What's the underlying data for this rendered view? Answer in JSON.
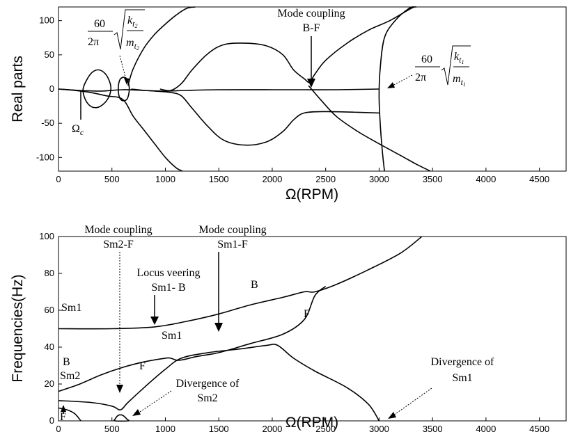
{
  "chart_data": [
    {
      "type": "line",
      "id": "real",
      "ylabel": "Real parts",
      "xlabel": "Ω(RPM)",
      "xlim": [
        0,
        4750
      ],
      "ylim": [
        -120,
        120
      ],
      "xticks": [
        "0",
        "500",
        "1000",
        "1500",
        "2000",
        "2500",
        "3000",
        "3500",
        "4000",
        "4500"
      ],
      "yticks": [
        "100",
        "50",
        "0",
        "-50",
        "-100"
      ],
      "grid": false,
      "annotations": {
        "omega_c": "Ω",
        "omega_c_sub": "c",
        "mc_line1": "Mode coupling",
        "mc_line2": "B-F",
        "kt2_num": "60",
        "kt2_den": "2π",
        "kt2_k": "k",
        "kt2_ksub": "t",
        "kt2_ksubsub": "2",
        "kt2_m": "m",
        "kt2_msub": "t",
        "kt2_msubsub": "2",
        "kt1_num": "60",
        "kt1_den": "2π",
        "kt1_k": "k",
        "kt1_ksub": "t",
        "kt1_ksubsub": "1",
        "kt1_m": "m",
        "kt1_msub": "t",
        "kt1_msubsub": "1"
      },
      "series": [
        {
          "points": [
            [
              0,
              0
            ],
            [
              200,
              -2
            ],
            [
              400,
              -3
            ],
            [
              600,
              -1
            ],
            [
              800,
              -2
            ],
            [
              1000,
              -3
            ],
            [
              1200,
              -2
            ],
            [
              1500,
              -1
            ],
            [
              2000,
              -1
            ],
            [
              2300,
              -1
            ],
            [
              2600,
              -1
            ],
            [
              3000,
              0
            ]
          ]
        },
        {
          "points": [
            [
              0,
              0
            ],
            [
              150,
              -2
            ],
            [
              300,
              -5
            ],
            [
              450,
              -10
            ],
            [
              600,
              -15
            ],
            [
              700,
              -40
            ],
            [
              800,
              -60
            ],
            [
              900,
              -80
            ],
            [
              1000,
              -100
            ],
            [
              1100,
              -115
            ],
            [
              1160,
              -125
            ]
          ]
        },
        {
          "points": [
            [
              650,
              5
            ],
            [
              700,
              30
            ],
            [
              800,
              60
            ],
            [
              900,
              80
            ],
            [
              1000,
              95
            ],
            [
              1100,
              108
            ],
            [
              1200,
              118
            ],
            [
              1280,
              125
            ]
          ]
        },
        {
          "points": [
            [
              680,
              0
            ],
            [
              800,
              -2
            ],
            [
              900,
              -3
            ],
            [
              1050,
              -5
            ],
            [
              1150,
              -10
            ],
            [
              1250,
              -28
            ],
            [
              1400,
              -55
            ],
            [
              1550,
              -75
            ],
            [
              1750,
              -82
            ],
            [
              1950,
              -77
            ],
            [
              2100,
              -62
            ],
            [
              2200,
              -45
            ],
            [
              2300,
              -35
            ],
            [
              2500,
              -33
            ],
            [
              2800,
              -34
            ],
            [
              3000,
              -35
            ]
          ]
        },
        {
          "points": [
            [
              950,
              0
            ],
            [
              1050,
              -2
            ],
            [
              1150,
              8
            ],
            [
              1250,
              28
            ],
            [
              1400,
              52
            ],
            [
              1550,
              65
            ],
            [
              1750,
              67
            ],
            [
              1950,
              63
            ],
            [
              2100,
              50
            ],
            [
              2200,
              28
            ],
            [
              2300,
              15
            ],
            [
              2350,
              10
            ],
            [
              2400,
              22
            ],
            [
              2500,
              42
            ],
            [
              2700,
              67
            ],
            [
              2900,
              86
            ],
            [
              3100,
              100
            ],
            [
              3300,
              118
            ],
            [
              3350,
              122
            ]
          ]
        },
        {
          "points": [
            [
              2340,
              5
            ],
            [
              2450,
              -15
            ],
            [
              2600,
              -40
            ],
            [
              2800,
              -62
            ],
            [
              3000,
              -80
            ],
            [
              3200,
              -97
            ],
            [
              3350,
              -110
            ],
            [
              3480,
              -125
            ]
          ]
        },
        {
          "points": [
            [
              3050,
              -125
            ],
            [
              3030,
              -90
            ],
            [
              3010,
              -50
            ],
            [
              3000,
              -10
            ],
            [
              3010,
              30
            ],
            [
              3050,
              75
            ],
            [
              3150,
              100
            ],
            [
              3280,
              118
            ],
            [
              3330,
              122
            ]
          ]
        },
        {
          "closed": true,
          "points": [
            [
              230,
              0
            ],
            [
              270,
              15
            ],
            [
              320,
              25
            ],
            [
              380,
              28
            ],
            [
              440,
              22
            ],
            [
              480,
              10
            ],
            [
              490,
              0
            ],
            [
              470,
              -12
            ],
            [
              420,
              -22
            ],
            [
              360,
              -27
            ],
            [
              300,
              -25
            ],
            [
              250,
              -15
            ]
          ]
        },
        {
          "closed": true,
          "points": [
            [
              560,
              0
            ],
            [
              570,
              12
            ],
            [
              600,
              17
            ],
            [
              640,
              15
            ],
            [
              660,
              5
            ],
            [
              660,
              -5
            ],
            [
              640,
              -15
            ],
            [
              600,
              -17
            ],
            [
              570,
              -12
            ]
          ]
        }
      ]
    },
    {
      "type": "line",
      "id": "freq",
      "ylabel": "Frequencies(Hz)",
      "xlabel": "Ω(RPM)",
      "xlim": [
        0,
        4750
      ],
      "ylim": [
        0,
        100
      ],
      "xticks": [
        "0",
        "500",
        "1000",
        "1500",
        "2000",
        "2500",
        "3000",
        "3500",
        "4000",
        "4500"
      ],
      "yticks": [
        "100",
        "80",
        "60",
        "40",
        "20",
        "0"
      ],
      "grid": false,
      "annotations": {
        "mc1_line1": "Mode coupling",
        "mc1_line2": "Sm2-F",
        "mc2_line1": "Mode coupling",
        "mc2_line2": "Sm1-F",
        "lv_line1": "Locus veering",
        "lv_line2": "Sm1- B",
        "sm1_left": "Sm1",
        "sm1_mid": "Sm1",
        "b_top": "B",
        "f_top": "F",
        "b_left": "B",
        "sm2_left": "Sm2",
        "f_mid": "F",
        "f_bottom": "F",
        "div_sm2_line1": "Divergence of",
        "div_sm2_line2": "Sm2",
        "div_sm1_line1": "Divergence of",
        "div_sm1_line2": "Sm1"
      },
      "series": [
        {
          "points": [
            [
              0,
              50
            ],
            [
              500,
              50
            ],
            [
              900,
              51
            ],
            [
              1200,
              54
            ],
            [
              1500,
              58
            ],
            [
              1800,
              63
            ],
            [
              2100,
              67
            ],
            [
              2300,
              70
            ],
            [
              2400,
              70
            ],
            [
              2600,
              74
            ],
            [
              2900,
              82
            ],
            [
              3200,
              91
            ],
            [
              3400,
              100
            ]
          ]
        },
        {
          "points": [
            [
              0,
              16
            ],
            [
              200,
              20
            ],
            [
              400,
              25
            ],
            [
              600,
              29
            ],
            [
              800,
              32
            ],
            [
              1000,
              34
            ],
            [
              1050,
              34
            ],
            [
              1100,
              33
            ],
            [
              1150,
              33
            ],
            [
              1300,
              35
            ],
            [
              1500,
              37
            ],
            [
              1800,
              42
            ],
            [
              2100,
              47
            ],
            [
              2300,
              55
            ],
            [
              2400,
              68
            ],
            [
              2500,
              73
            ]
          ]
        },
        {
          "points": [
            [
              0,
              11
            ],
            [
              300,
              10
            ],
            [
              500,
              8
            ],
            [
              580,
              6
            ],
            [
              650,
              10
            ],
            [
              800,
              18
            ],
            [
              1000,
              28
            ],
            [
              1150,
              34
            ],
            [
              1400,
              37
            ],
            [
              1700,
              39
            ],
            [
              1950,
              41
            ],
            [
              2050,
              41
            ],
            [
              2200,
              34
            ],
            [
              2400,
              27
            ],
            [
              2700,
              18
            ],
            [
              2900,
              9
            ],
            [
              3000,
              0
            ]
          ]
        },
        {
          "points": [
            [
              0,
              7
            ],
            [
              80,
              6
            ],
            [
              150,
              4
            ],
            [
              210,
              0
            ]
          ]
        },
        {
          "closed": true,
          "points": [
            [
              530,
              1
            ],
            [
              560,
              3
            ],
            [
              600,
              3
            ],
            [
              640,
              1
            ],
            [
              650,
              0
            ],
            [
              530,
              0
            ]
          ]
        }
      ]
    }
  ]
}
